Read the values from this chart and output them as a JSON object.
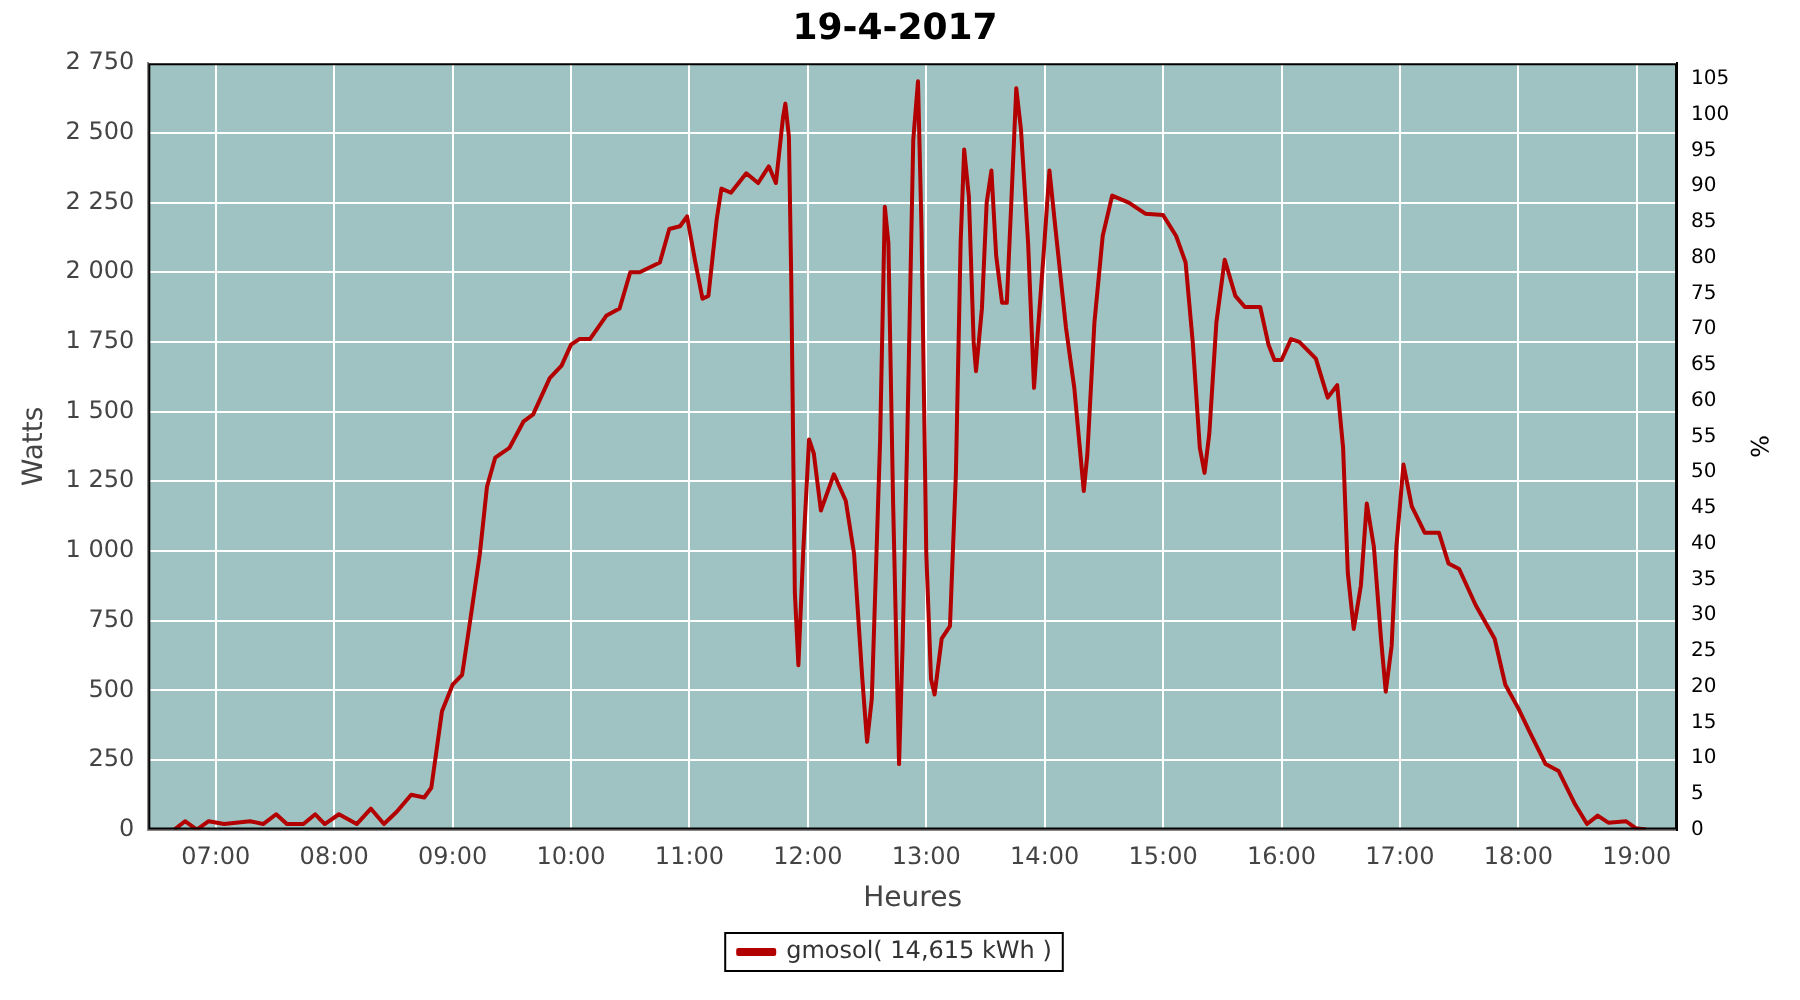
{
  "chart_data": {
    "type": "line",
    "title": "19-4-2017",
    "xlabel": "Heures",
    "ylabel": "Watts",
    "y2label": "%",
    "xlim": [
      6.43,
      19.34
    ],
    "xticks": [
      {
        "value": 7,
        "label": "07:00"
      },
      {
        "value": 8,
        "label": "08:00"
      },
      {
        "value": 9,
        "label": "09:00"
      },
      {
        "value": 10,
        "label": "10:00"
      },
      {
        "value": 11,
        "label": "11:00"
      },
      {
        "value": 12,
        "label": "12:00"
      },
      {
        "value": 13,
        "label": "13:00"
      },
      {
        "value": 14,
        "label": "14:00"
      },
      {
        "value": 15,
        "label": "15:00"
      },
      {
        "value": 16,
        "label": "16:00"
      },
      {
        "value": 17,
        "label": "17:00"
      },
      {
        "value": 18,
        "label": "18:00"
      },
      {
        "value": 19,
        "label": "19:00"
      }
    ],
    "ylim": [
      0,
      2750
    ],
    "yticks": [
      0,
      250,
      500,
      750,
      {
        "value": 1000,
        "label": "1 000"
      },
      {
        "value": 1250,
        "label": "1 250"
      },
      {
        "value": 1500,
        "label": "1 500"
      },
      {
        "value": 1750,
        "label": "1 750"
      },
      {
        "value": 2000,
        "label": "2 000"
      },
      {
        "value": 2250,
        "label": "2 250"
      },
      {
        "value": 2500,
        "label": "2 500"
      },
      {
        "value": 2750,
        "label": "2 750"
      }
    ],
    "y2lim": [
      0,
      107.2
    ],
    "y2ticks": [
      0,
      5,
      10,
      15,
      20,
      25,
      30,
      35,
      40,
      45,
      50,
      55,
      60,
      65,
      70,
      75,
      80,
      85,
      90,
      95,
      100,
      105
    ],
    "grid": true,
    "legend": "bottom",
    "marker": "none",
    "line_style": "solid",
    "series": [
      {
        "name": "gmosol( 14,615 kWh )",
        "color": "#b30000",
        "axis": "y",
        "x": [
          6.65,
          6.74,
          6.84,
          6.94,
          7.07,
          7.29,
          7.4,
          7.51,
          7.6,
          7.74,
          7.84,
          7.92,
          8.04,
          8.19,
          8.31,
          8.42,
          8.53,
          8.65,
          8.76,
          8.82,
          8.91,
          9.0,
          9.08,
          9.15,
          9.23,
          9.29,
          9.36,
          9.48,
          9.6,
          9.68,
          9.82,
          9.92,
          10.0,
          10.07,
          10.16,
          10.3,
          10.41,
          10.5,
          10.58,
          10.75,
          10.83,
          10.92,
          10.98,
          11.05,
          11.11,
          11.16,
          11.23,
          11.27,
          11.35,
          11.48,
          11.58,
          11.67,
          11.73,
          11.79,
          11.81,
          11.84,
          11.86,
          11.89,
          11.92,
          11.96,
          12.01,
          12.05,
          12.11,
          12.22,
          12.32,
          12.39,
          12.46,
          12.5,
          12.54,
          12.61,
          12.65,
          12.68,
          12.72,
          12.77,
          12.8,
          12.84,
          12.89,
          12.93,
          12.96,
          13.0,
          13.04,
          13.07,
          13.13,
          13.2,
          13.25,
          13.29,
          13.32,
          13.36,
          13.4,
          13.42,
          13.47,
          13.51,
          13.55,
          13.59,
          13.64,
          13.68,
          13.72,
          13.76,
          13.8,
          13.86,
          13.91,
          13.94,
          13.99,
          14.04,
          14.1,
          14.18,
          14.25,
          14.33,
          14.36,
          14.42,
          14.49,
          14.57,
          14.71,
          14.85,
          15.0,
          15.11,
          15.19,
          15.25,
          15.31,
          15.35,
          15.39,
          15.45,
          15.52,
          15.61,
          15.69,
          15.82,
          15.89,
          15.94,
          16.0,
          16.08,
          16.15,
          16.29,
          16.39,
          16.47,
          16.52,
          16.56,
          16.61,
          16.67,
          16.72,
          16.78,
          16.84,
          16.88,
          16.93,
          16.97,
          17.03,
          17.1,
          17.21,
          17.33,
          17.41,
          17.5,
          17.64,
          17.8,
          17.89,
          18.0,
          18.09,
          18.23,
          18.34,
          18.48,
          18.58,
          18.67,
          18.76,
          18.91,
          18.99,
          19.08
        ],
        "values": [
          0,
          30,
          0,
          30,
          20,
          30,
          20,
          55,
          20,
          20,
          55,
          20,
          55,
          20,
          75,
          20,
          65,
          125,
          115,
          150,
          425,
          520,
          555,
          755,
          990,
          1230,
          1335,
          1370,
          1465,
          1490,
          1620,
          1665,
          1740,
          1760,
          1760,
          1845,
          1870,
          2000,
          2000,
          2035,
          2155,
          2165,
          2200,
          2035,
          1905,
          1915,
          2190,
          2300,
          2285,
          2355,
          2320,
          2380,
          2320,
          2555,
          2605,
          2485,
          1965,
          850,
          590,
          990,
          1400,
          1350,
          1145,
          1275,
          1180,
          990,
          540,
          315,
          470,
          1395,
          2235,
          2105,
          1170,
          235,
          660,
          1420,
          2475,
          2685,
          2150,
          990,
          540,
          485,
          685,
          730,
          1275,
          2105,
          2440,
          2270,
          1750,
          1645,
          1870,
          2250,
          2365,
          2060,
          1890,
          1890,
          2270,
          2660,
          2510,
          2105,
          1585,
          1775,
          2060,
          2365,
          2120,
          1800,
          1585,
          1215,
          1345,
          1820,
          2130,
          2275,
          2250,
          2210,
          2205,
          2130,
          2035,
          1750,
          1370,
          1280,
          1420,
          1820,
          2045,
          1915,
          1875,
          1875,
          1740,
          1685,
          1685,
          1760,
          1750,
          1690,
          1550,
          1595,
          1370,
          920,
          720,
          875,
          1170,
          1015,
          685,
          495,
          660,
          1015,
          1310,
          1160,
          1065,
          1065,
          955,
          935,
          805,
          685,
          520,
          435,
          355,
          235,
          210,
          90,
          20,
          50,
          25,
          30,
          5,
          0
        ]
      }
    ]
  }
}
